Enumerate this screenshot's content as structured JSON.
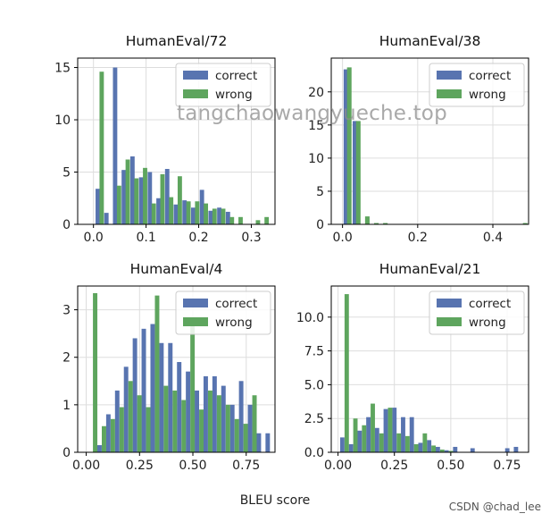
{
  "chart_data": [
    {
      "type": "bar",
      "title": "HumanEval/72",
      "xlim": [
        -0.03,
        0.345
      ],
      "ylim": [
        0,
        15.9
      ],
      "xticks": [
        0.0,
        0.1,
        0.2,
        0.3
      ],
      "xtick_labels": [
        "0.0",
        "0.1",
        "0.2",
        "0.3"
      ],
      "yticks": [
        0,
        5,
        10,
        15
      ],
      "ytick_labels": [
        "0",
        "5",
        "10",
        "15"
      ],
      "bin_width": 0.0165,
      "series": [
        {
          "name": "correct",
          "x": [
            0.004,
            0.0205,
            0.037,
            0.0535,
            0.07,
            0.0865,
            0.103,
            0.1195,
            0.136,
            0.1525,
            0.169,
            0.1855,
            0.202,
            0.2185,
            0.235,
            0.2515,
            0.268,
            0.2845,
            0.301,
            0.3175
          ],
          "values": [
            3.4,
            1.1,
            15.0,
            5.2,
            6.5,
            4.5,
            5.0,
            2.5,
            5.3,
            1.9,
            2.3,
            1.6,
            3.3,
            1.3,
            1.6,
            1.2,
            0,
            0,
            0,
            0
          ]
        },
        {
          "name": "wrong",
          "x": [
            0.0115,
            0.028,
            0.0445,
            0.061,
            0.0775,
            0.094,
            0.1105,
            0.127,
            0.1435,
            0.16,
            0.1765,
            0.193,
            0.2095,
            0.226,
            0.2425,
            0.259,
            0.2755,
            0.292,
            0.3085,
            0.325
          ],
          "values": [
            14.6,
            0,
            3.7,
            6.2,
            4.4,
            5.4,
            2.0,
            4.8,
            2.6,
            4.6,
            2.2,
            2.2,
            2.0,
            1.5,
            1.5,
            0.7,
            0.7,
            0,
            0.4,
            0.7
          ]
        }
      ],
      "legend": "top-right"
    },
    {
      "type": "bar",
      "title": "HumanEval/38",
      "xlim": [
        -0.03,
        0.495
      ],
      "ylim": [
        0,
        25.1
      ],
      "xticks": [
        0.0,
        0.2,
        0.4
      ],
      "xtick_labels": [
        "0.0",
        "0.2",
        "0.4"
      ],
      "yticks": [
        0,
        5,
        10,
        15,
        20
      ],
      "ytick_labels": [
        "0",
        "5",
        "10",
        "15",
        "20"
      ],
      "bin_width": 0.024,
      "series": [
        {
          "name": "correct",
          "x": [
            0.003,
            0.027,
            0.051
          ],
          "values": [
            23.4,
            15.6,
            0
          ]
        },
        {
          "name": "wrong",
          "x": [
            0.012,
            0.036,
            0.06,
            0.084,
            0.108,
            0.48
          ],
          "values": [
            23.7,
            15.6,
            1.2,
            0.2,
            0.2,
            0.2
          ]
        }
      ],
      "legend": "top-right"
    },
    {
      "type": "bar",
      "title": "HumanEval/4",
      "xlim": [
        -0.04,
        0.885
      ],
      "ylim": [
        0,
        3.5
      ],
      "xticks": [
        0.0,
        0.25,
        0.5,
        0.75
      ],
      "xtick_labels": [
        "0.00",
        "0.25",
        "0.50",
        "0.75"
      ],
      "yticks": [
        0,
        1,
        2,
        3
      ],
      "ytick_labels": [
        "0",
        "1",
        "2",
        "3"
      ],
      "bin_width": 0.0415,
      "series": [
        {
          "name": "correct",
          "x": [
            0.0105,
            0.052,
            0.0935,
            0.135,
            0.1765,
            0.218,
            0.2595,
            0.301,
            0.3425,
            0.384,
            0.4255,
            0.467,
            0.5085,
            0.55,
            0.5915,
            0.633,
            0.6745,
            0.716,
            0.7575,
            0.799,
            0.8405
          ],
          "values": [
            0,
            0.15,
            0.8,
            1.3,
            1.8,
            2.4,
            2.6,
            2.7,
            2.3,
            2.3,
            1.9,
            1.7,
            1.3,
            1.6,
            1.6,
            1.4,
            1.0,
            1.5,
            1.0,
            0.4,
            0.4
          ]
        },
        {
          "name": "wrong",
          "x": [
            0.0315,
            0.073,
            0.1145,
            0.156,
            0.1975,
            0.239,
            0.2805,
            0.322,
            0.3635,
            0.405,
            0.4465,
            0.488,
            0.5295,
            0.571,
            0.6125,
            0.654,
            0.6955,
            0.737,
            0.7785,
            0.82
          ],
          "values": [
            3.35,
            0.55,
            0.7,
            0.95,
            1.5,
            1.2,
            0.95,
            3.3,
            1.4,
            1.3,
            1.1,
            2.7,
            0.9,
            1.3,
            1.2,
            1.0,
            0.7,
            0.6,
            1.2,
            0
          ]
        }
      ],
      "legend": "top-right"
    },
    {
      "type": "bar",
      "title": "HumanEval/21",
      "xlim": [
        -0.03,
        0.845
      ],
      "ylim": [
        0,
        12.3
      ],
      "xticks": [
        0.0,
        0.25,
        0.5,
        0.75
      ],
      "xtick_labels": [
        "0.00",
        "0.25",
        "0.50",
        "0.75"
      ],
      "yticks": [
        0.0,
        2.5,
        5.0,
        7.5,
        10.0
      ],
      "ytick_labels": [
        "0.0",
        "2.5",
        "5.0",
        "7.5",
        "10.0"
      ],
      "bin_width": 0.0385,
      "series": [
        {
          "name": "correct",
          "x": [
            0.0095,
            0.048,
            0.0865,
            0.125,
            0.1635,
            0.202,
            0.2405,
            0.279,
            0.3175,
            0.356,
            0.3945,
            0.433,
            0.4715,
            0.51,
            0.5485,
            0.587,
            0.6255,
            0.664,
            0.7025,
            0.741,
            0.7795
          ],
          "values": [
            1.1,
            0.6,
            1.6,
            2.6,
            1.8,
            3.2,
            3.3,
            2.6,
            2.6,
            0.7,
            0.9,
            0.4,
            0.15,
            0.4,
            0,
            0.3,
            0,
            0,
            0,
            0.3,
            0.4
          ]
        },
        {
          "name": "wrong",
          "x": [
            0.029,
            0.0675,
            0.106,
            0.1445,
            0.183,
            0.2215,
            0.26,
            0.2985,
            0.337,
            0.3755,
            0.414,
            0.4525,
            0.491
          ],
          "values": [
            11.7,
            2.5,
            2.0,
            3.6,
            1.4,
            3.3,
            1.4,
            1.2,
            0.6,
            1.4,
            0.5,
            0.2,
            0.1
          ]
        }
      ],
      "legend": "top-right"
    }
  ],
  "figure": {
    "xlabel": "BLEU score",
    "watermark": "tangchaowangyueche.top",
    "credit": "CSDN @chad_lee"
  },
  "colors": {
    "correct": "#5874b0",
    "wrong": "#5ea55e",
    "grid": "#dddddd",
    "axis": "#000000"
  }
}
